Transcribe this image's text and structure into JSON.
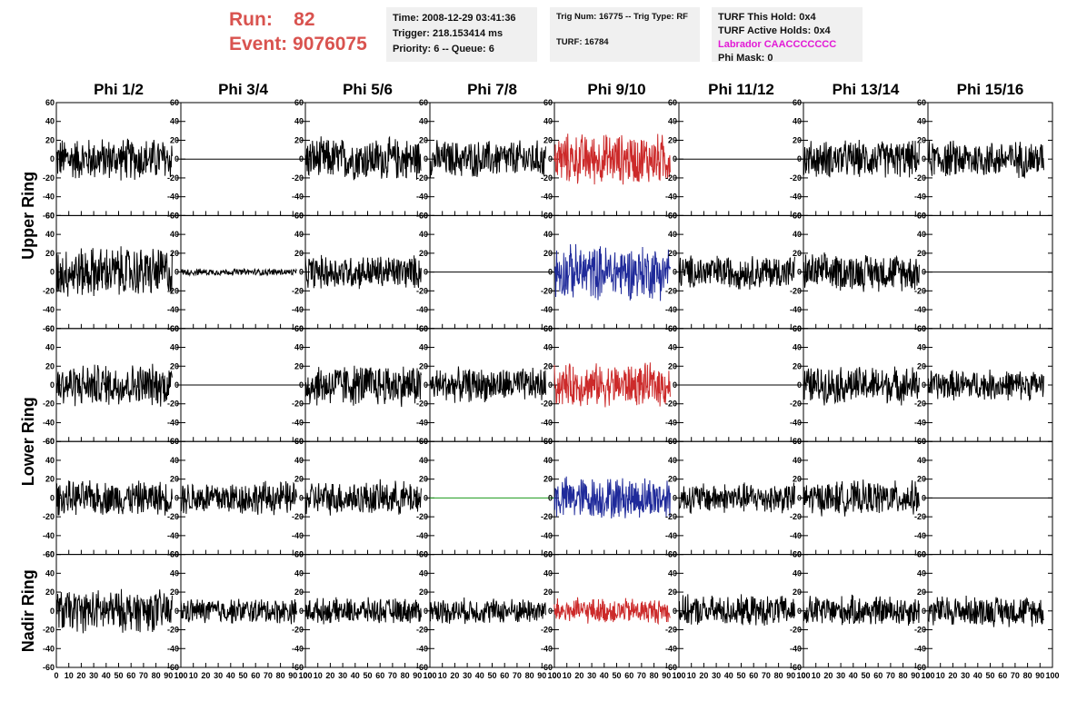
{
  "run": {
    "run_label": "Run:",
    "run_value": "82",
    "event_label": "Event:",
    "event_value": "9076075"
  },
  "info": {
    "time": "Time: 2008-12-29 03:41:36",
    "trigger": "Trigger: 218.153414 ms",
    "priority": "Priority: 6 -- Queue: 6",
    "trig_num": "Trig Num: 16775 -- Trig Type: RF",
    "turf": "TURF: 16784",
    "turf_hold": "TURF This Hold: 0x4",
    "turf_active": "TURF Active Holds: 0x4",
    "labrador": "Labrador CAACCCCCCC",
    "phi_mask": "Phi Mask: 0"
  },
  "colors": {
    "run_text": "#d9534f",
    "trace_default": "#000000",
    "trace_red": "#cc2a2a",
    "trace_blue": "#1f2a9a",
    "trace_green": "#1a9a1a",
    "labrador": "#e21ad6"
  },
  "chart_data": {
    "type": "line",
    "grid": "8 columns x 5 rows of waveform panels",
    "columns": [
      "Phi 1/2",
      "Phi 3/4",
      "Phi 5/6",
      "Phi 7/8",
      "Phi 9/10",
      "Phi 11/12",
      "Phi 13/14",
      "Phi 15/16"
    ],
    "ring_labels": [
      {
        "label": "Upper Ring",
        "rows": [
          0,
          1
        ]
      },
      {
        "label": "Lower Ring",
        "rows": [
          2,
          3
        ]
      },
      {
        "label": "Nadir Ring",
        "rows": [
          4
        ]
      }
    ],
    "ylim": [
      -60,
      60
    ],
    "y_ticks": [
      "60",
      "40",
      "20",
      "0",
      "-20",
      "-40",
      "-60"
    ],
    "xlim": [
      0,
      100
    ],
    "x_ticks": [
      "0",
      "10",
      "20",
      "30",
      "40",
      "50",
      "60",
      "70",
      "80",
      "90",
      "100"
    ],
    "x_tick_values": [
      0,
      10,
      20,
      30,
      40,
      50,
      60,
      70,
      80,
      90,
      100
    ],
    "trace_x_range": [
      0,
      93
    ],
    "waveforms": [
      [
        "noise:25",
        "flat",
        "noise:25",
        "noise:22",
        "noise:red:30",
        "flat",
        "noise:22",
        "noise:22"
      ],
      [
        "noise:30",
        "noise:4",
        "noise:20",
        "flat",
        "noise:blue:32",
        "noise:20",
        "noise:22",
        "flat"
      ],
      [
        "noise:25",
        "flat",
        "noise:25",
        "noise:20",
        "noise:red:25",
        "flat",
        "noise:22",
        "noise:18"
      ],
      [
        "noise:20",
        "noise:20",
        "noise:20",
        "flat:green",
        "noise:blue:25",
        "noise:18",
        "noise:20",
        "flat"
      ],
      [
        "noise:25",
        "noise:15",
        "noise:15",
        "noise:15",
        "noise:red:15",
        "noise:18",
        "noise:18",
        "noise:18"
      ]
    ]
  }
}
